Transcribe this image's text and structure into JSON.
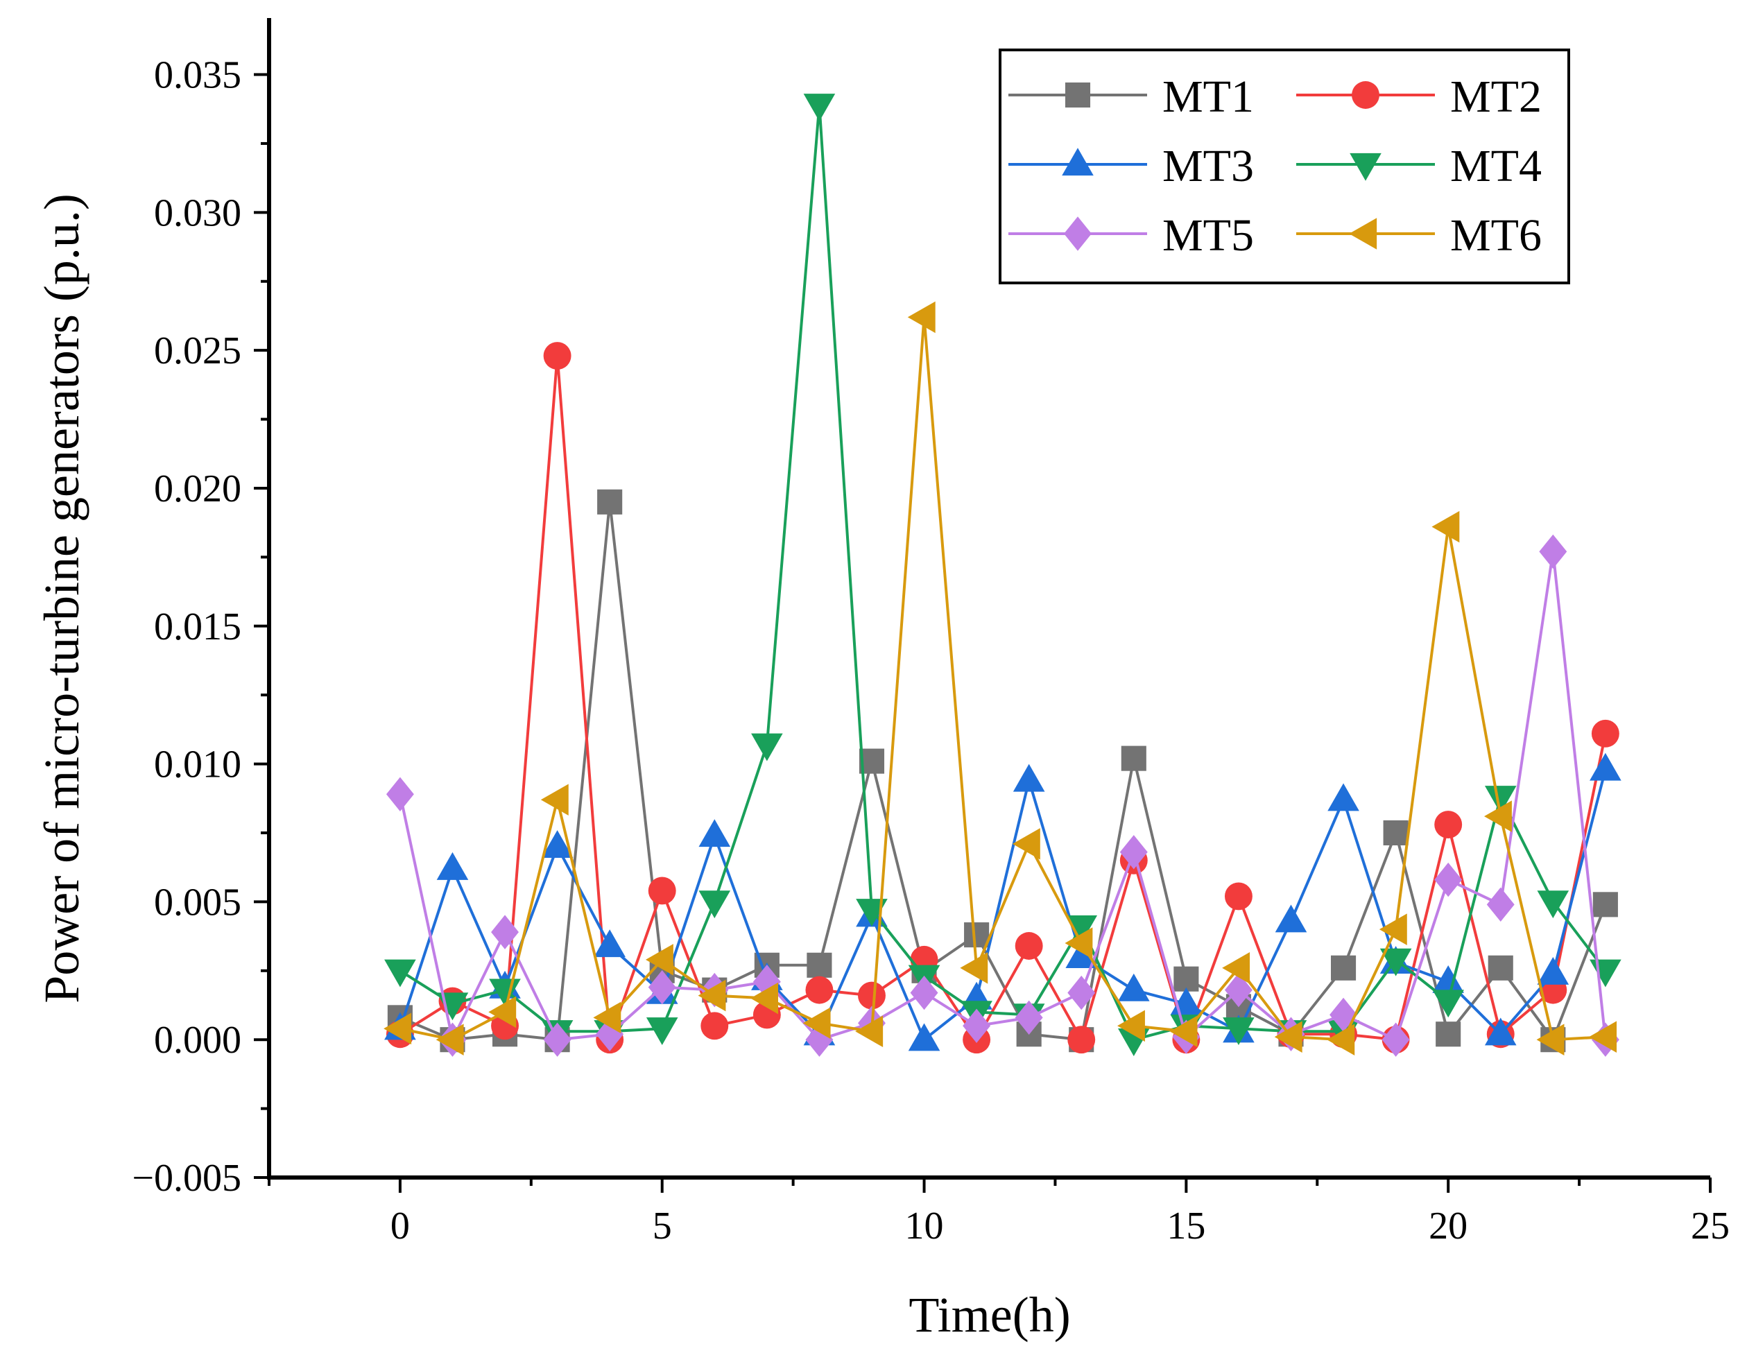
{
  "chart_data": {
    "type": "line",
    "title": "",
    "xlabel": "Time(h)",
    "ylabel": "Power of micro-turbine generators (p.u.)",
    "xlim": [
      -2.5,
      25
    ],
    "ylim": [
      -0.005,
      0.037
    ],
    "xticks": [
      0,
      5,
      10,
      15,
      20,
      25
    ],
    "xtick_labels": [
      "0",
      "5",
      "10",
      "15",
      "20",
      "25"
    ],
    "yticks": [
      -0.005,
      0.0,
      0.005,
      0.01,
      0.015,
      0.02,
      0.025,
      0.03,
      0.035
    ],
    "ytick_labels": [
      "−0.005",
      "0.000",
      "0.005",
      "0.010",
      "0.015",
      "0.020",
      "0.025",
      "0.030",
      "0.035"
    ],
    "legend_position": "top-right",
    "x": [
      0,
      1,
      2,
      3,
      4,
      5,
      6,
      7,
      8,
      9,
      10,
      11,
      12,
      13,
      14,
      15,
      16,
      17,
      18,
      19,
      20,
      21,
      22,
      23
    ],
    "series": [
      {
        "name": "MT1",
        "color": "#737373",
        "marker": "square",
        "values": [
          0.0008,
          0.0,
          0.0002,
          0.0,
          0.0195,
          0.0025,
          0.0018,
          0.0027,
          0.0027,
          0.0101,
          0.0025,
          0.0038,
          0.0002,
          0.0,
          0.0102,
          0.0022,
          0.0012,
          0.0002,
          0.0026,
          0.0075,
          0.0002,
          0.0026,
          0.0,
          0.0049
        ]
      },
      {
        "name": "MT2",
        "color": "#f23c3c",
        "marker": "circle",
        "values": [
          0.0002,
          0.0014,
          0.0005,
          0.0248,
          0.0,
          0.0054,
          0.0005,
          0.0009,
          0.0018,
          0.0016,
          0.0029,
          0.0,
          0.0034,
          0.0,
          0.0065,
          0.0,
          0.0052,
          0.0002,
          0.0002,
          0.0,
          0.0078,
          0.0002,
          0.0018,
          0.0111
        ]
      },
      {
        "name": "MT3",
        "color": "#1f6fd9",
        "marker": "triangle-up",
        "values": [
          0.0004,
          0.0062,
          0.0019,
          0.007,
          0.0034,
          0.0017,
          0.0074,
          0.0022,
          0.0002,
          0.0045,
          0.0,
          0.0015,
          0.0094,
          0.003,
          0.0018,
          0.0013,
          0.0003,
          0.0043,
          0.0087,
          0.0028,
          0.0021,
          0.0002,
          0.0024,
          0.0098
        ]
      },
      {
        "name": "MT4",
        "color": "#19a05a",
        "marker": "triangle-down",
        "values": [
          0.0025,
          0.0013,
          0.0018,
          0.0003,
          0.0003,
          0.0004,
          0.005,
          0.0107,
          0.0339,
          0.0047,
          0.0023,
          0.001,
          0.0009,
          0.0041,
          0.0,
          0.0005,
          0.0004,
          0.0003,
          0.0003,
          0.0029,
          0.0014,
          0.0088,
          0.005,
          0.0025
        ]
      },
      {
        "name": "MT5",
        "color": "#c07ee6",
        "marker": "diamond",
        "values": [
          0.0089,
          0.0,
          0.0039,
          0.0,
          0.0002,
          0.0019,
          0.0018,
          0.0021,
          0.0,
          0.0006,
          0.0017,
          0.0005,
          0.0008,
          0.0017,
          0.0068,
          0.0001,
          0.0018,
          0.0002,
          0.0009,
          0.0,
          0.0058,
          0.0049,
          0.0177,
          0.0
        ]
      },
      {
        "name": "MT6",
        "color": "#d89a0e",
        "marker": "triangle-left",
        "values": [
          0.0004,
          0.0,
          0.001,
          0.0087,
          0.0008,
          0.0029,
          0.0016,
          0.0015,
          0.0006,
          0.0003,
          0.0262,
          0.0026,
          0.0071,
          0.0035,
          0.0005,
          0.0003,
          0.0026,
          0.0001,
          0.0,
          0.004,
          0.0186,
          0.0081,
          0.0,
          0.0001
        ]
      }
    ]
  }
}
